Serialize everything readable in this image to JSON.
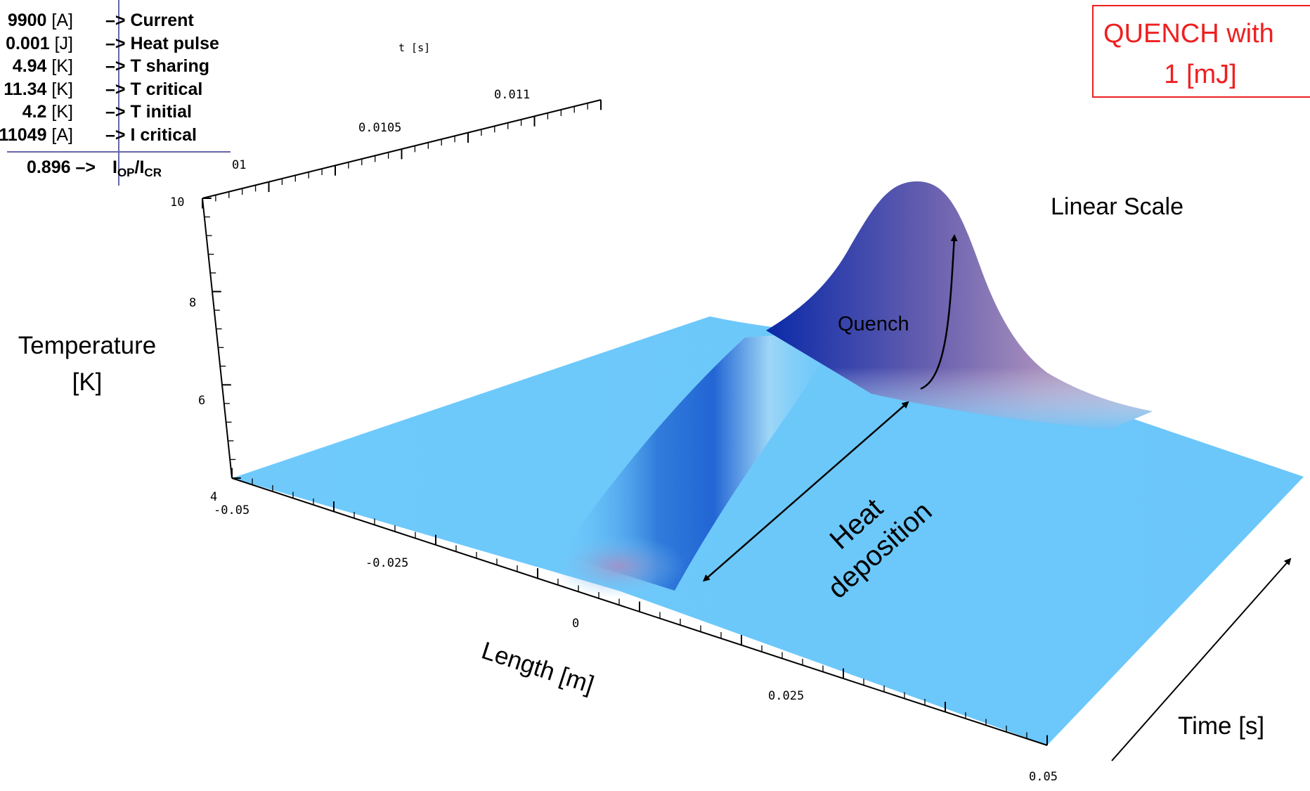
{
  "params": [
    {
      "value": "9900",
      "unit": "[A]",
      "arrow": "–>",
      "label": "Current"
    },
    {
      "value": "0.001",
      "unit": "[J]",
      "arrow": "–>",
      "label": "Heat pulse"
    },
    {
      "value": "4.94",
      "unit": "[K]",
      "arrow": "–>",
      "label": "T sharing"
    },
    {
      "value": "11.34",
      "unit": "[K]",
      "arrow": "–>",
      "label": "T critical"
    },
    {
      "value": "4.2",
      "unit": "[K]",
      "arrow": "–>",
      "label": "T initial"
    },
    {
      "value": "11049",
      "unit": "[A]",
      "arrow": "–>",
      "label": "I critical"
    }
  ],
  "ratio": {
    "value": "0.896",
    "arrow": "–>",
    "label": "I",
    "sub1": "OP",
    "slash": "/I",
    "sub2": "CR"
  },
  "annotations": {
    "quench_box_line1": "QUENCH with",
    "quench_box_line2": "1 [mJ]",
    "scale": "Linear Scale",
    "quench": "Quench",
    "heat": "Heat",
    "deposition": "deposition",
    "time": "Time [s]"
  },
  "colors": {
    "surface": "#6ec8fb",
    "peak_dark": "#0a2aa8",
    "peak_mauve": "#9a82b6",
    "box": "#ee2020"
  },
  "chart_data": {
    "type": "surface",
    "xlabel": "Length [m]",
    "ylabel": "t [s]",
    "zlabel_line1": "Temperature",
    "zlabel_line2": "[K]",
    "x_ticks": [
      "-0.05",
      "-0.025",
      "0",
      "0.025",
      "0.05"
    ],
    "y_ticks": [
      "01",
      "0.0105",
      "0.011"
    ],
    "z_ticks": [
      "4",
      "6",
      "8",
      "10"
    ],
    "x_range": [
      -0.05,
      0.05
    ],
    "z_range": [
      4,
      10
    ],
    "t_initial_K": 4.2,
    "t_peak_K": 10.8,
    "grid": false
  }
}
